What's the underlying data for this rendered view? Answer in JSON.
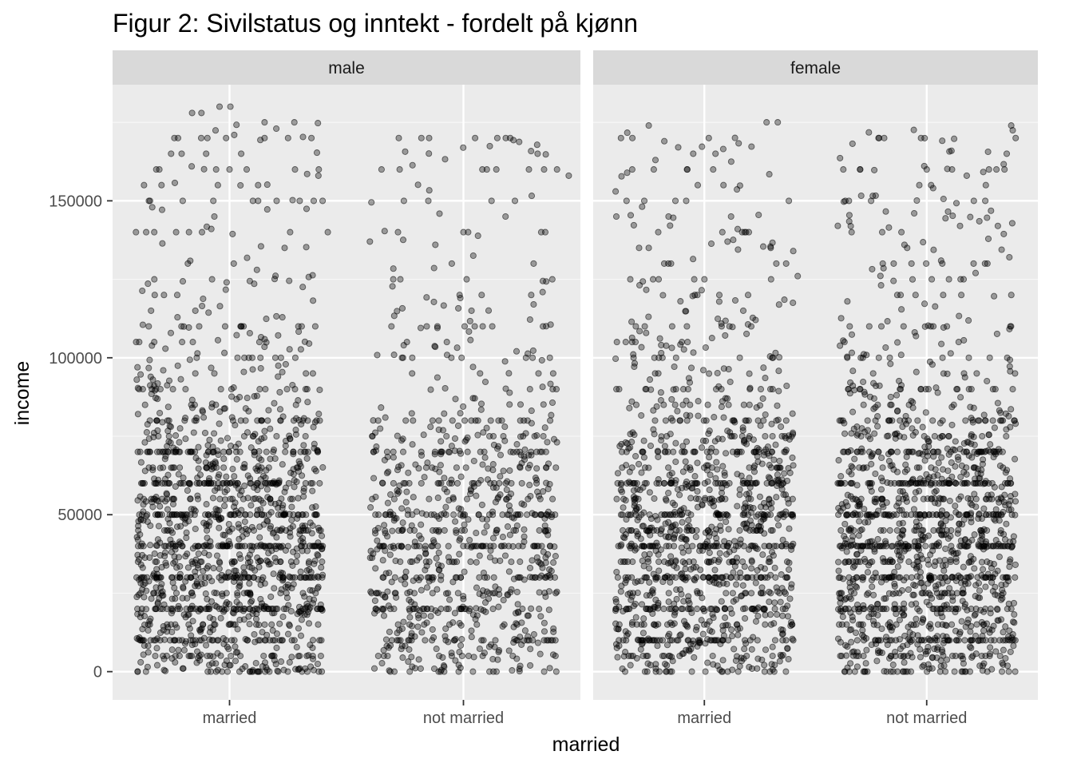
{
  "chart_data": {
    "type": "scatter",
    "title": "Figur 2: Sivilstatus og inntekt - fordelt på kjønn",
    "xlabel": "married",
    "ylabel": "income",
    "x_categories": [
      "married",
      "not married"
    ],
    "ylim": [
      -9000,
      187000
    ],
    "y_ticks": [
      0,
      50000,
      100000,
      150000
    ],
    "y_tick_labels": [
      "0",
      "50000",
      "100000",
      "150000"
    ],
    "grid": true,
    "jitter": true,
    "point_color": "#000000",
    "point_alpha": 0.35,
    "panel_background": "#ebebeb",
    "strip_background": "#d9d9d9",
    "facets": [
      {
        "label": "male",
        "groups": [
          {
            "x": "married",
            "approx_n": 1500,
            "y_min": 0,
            "y_max": 178000,
            "highlighted_points": [
              [
                -0.38,
                3000
              ],
              [
                -0.35,
                1500
              ],
              [
                -0.28,
                500
              ],
              [
                -0.2,
                1000
              ],
              [
                -0.05,
                500
              ],
              [
                0.1,
                500
              ],
              [
                0.3,
                1000
              ],
              [
                0.36,
                500
              ],
              [
                -0.4,
                140000
              ],
              [
                -0.34,
                150000
              ],
              [
                -0.3,
                160000
              ],
              [
                -0.25,
                165000
              ],
              [
                -0.22,
                170000
              ],
              [
                -0.16,
                178000
              ],
              [
                -0.12,
                178000
              ],
              [
                -0.1,
                165000
              ],
              [
                -0.05,
                155000
              ],
              [
                0.02,
                171000
              ],
              [
                0.05,
                165000
              ],
              [
                0.15,
                170000
              ],
              [
                0.15,
                175000
              ],
              [
                0.2,
                173000
              ],
              [
                0.25,
                170000
              ],
              [
                0.28,
                160000
              ],
              [
                0.35,
                170000
              ],
              [
                0.36,
                150000
              ],
              [
                0.38,
                158000
              ],
              [
                0.42,
                140000
              ],
              [
                0.3,
                150000
              ],
              [
                0.1,
                150000
              ],
              [
                -0.2,
                150000
              ],
              [
                0.0,
                160000
              ]
            ]
          },
          {
            "x": "not married",
            "approx_n": 900,
            "y_min": 0,
            "y_max": 170000,
            "highlighted_points": [
              [
                -0.4,
                137000
              ],
              [
                -0.35,
                160000
              ],
              [
                -0.3,
                125000
              ],
              [
                -0.28,
                140000
              ],
              [
                -0.18,
                170000
              ],
              [
                -0.15,
                150000
              ],
              [
                -0.12,
                136000
              ],
              [
                -0.05,
                130000
              ],
              [
                0.0,
                140000
              ],
              [
                0.02,
                140000
              ],
              [
                0.1,
                160000
              ],
              [
                0.12,
                150000
              ],
              [
                0.18,
                145000
              ],
              [
                0.22,
                150000
              ],
              [
                0.28,
                160000
              ],
              [
                0.3,
                130000
              ],
              [
                0.35,
                140000
              ],
              [
                0.38,
                125000
              ],
              [
                0.4,
                160000
              ],
              [
                0.45,
                158000
              ],
              [
                0.3,
                117000
              ],
              [
                0.05,
                170000
              ],
              [
                0.2,
                170000
              ]
            ]
          }
        ]
      },
      {
        "label": "female",
        "groups": [
          {
            "x": "married",
            "approx_n": 1300,
            "y_min": 0,
            "y_max": 175000,
            "highlighted_points": [
              [
                -0.35,
                150000
              ],
              [
                -0.25,
                174000
              ],
              [
                -0.22,
                163000
              ],
              [
                -0.18,
                169000
              ],
              [
                -0.13,
                150000
              ],
              [
                -0.05,
                165000
              ],
              [
                0.02,
                170000
              ],
              [
                0.05,
                165000
              ],
              [
                0.12,
                145000
              ],
              [
                0.15,
                141000
              ],
              [
                0.2,
                140000
              ],
              [
                0.28,
                175000
              ],
              [
                0.33,
                175000
              ],
              [
                0.38,
                150000
              ],
              [
                0.4,
                134000
              ],
              [
                0.42,
                126000
              ],
              [
                -0.25,
                135000
              ],
              [
                -0.15,
                130000
              ],
              [
                0.0,
                125000
              ],
              [
                0.3,
                125000
              ]
            ]
          },
          {
            "x": "not married",
            "approx_n": 1500,
            "y_min": 0,
            "y_max": 174000,
            "highlighted_points": [
              [
                -0.35,
                150000
              ],
              [
                -0.3,
                160000
              ],
              [
                -0.25,
                150000
              ],
              [
                -0.2,
                140000
              ],
              [
                -0.1,
                136000
              ],
              [
                -0.05,
                120000
              ],
              [
                0.0,
                160000
              ],
              [
                0.02,
                155000
              ],
              [
                0.15,
                142000
              ],
              [
                0.18,
                158000
              ],
              [
                0.28,
                160000
              ],
              [
                0.32,
                142000
              ],
              [
                0.35,
                160000
              ],
              [
                0.36,
                165000
              ],
              [
                0.38,
                174000
              ],
              [
                0.4,
                170000
              ],
              [
                0.1,
                125000
              ],
              [
                0.22,
                127000
              ]
            ]
          }
        ]
      }
    ]
  }
}
